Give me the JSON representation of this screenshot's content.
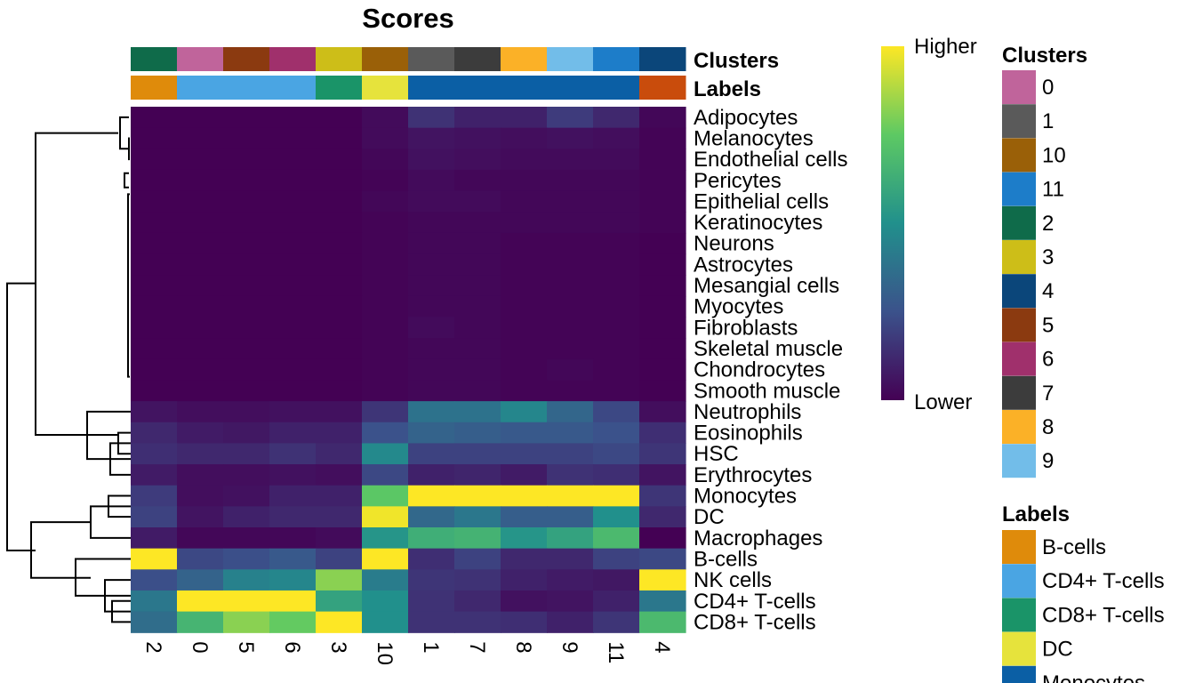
{
  "chart_data": {
    "type": "heatmap",
    "title": "Scores",
    "columns": [
      "2",
      "0",
      "5",
      "6",
      "3",
      "10",
      "1",
      "7",
      "8",
      "9",
      "11",
      "4"
    ],
    "rows": [
      "Adipocytes",
      "Melanocytes",
      "Endothelial cells",
      "Pericytes",
      "Epithelial cells",
      "Keratinocytes",
      "Neurons",
      "Astrocytes",
      "Mesangial cells",
      "Myocytes",
      "Fibroblasts",
      "Skeletal muscle",
      "Chondrocytes",
      "Smooth muscle",
      "Neutrophils",
      "Eosinophils",
      "HSC",
      "Erythrocytes",
      "Monocytes",
      "DC",
      "Macrophages",
      "B-cells",
      "NK cells",
      "CD4+ T-cells",
      "CD8+ T-cells"
    ],
    "values": [
      [
        0.0,
        0.0,
        0.0,
        0.0,
        0.0,
        0.03,
        0.15,
        0.1,
        0.1,
        0.18,
        0.12,
        0.02
      ],
      [
        0.0,
        0.0,
        0.0,
        0.0,
        0.0,
        0.03,
        0.06,
        0.05,
        0.04,
        0.05,
        0.04,
        0.01
      ],
      [
        0.0,
        0.0,
        0.0,
        0.0,
        0.0,
        0.02,
        0.05,
        0.04,
        0.03,
        0.03,
        0.03,
        0.01
      ],
      [
        0.0,
        0.0,
        0.0,
        0.0,
        0.0,
        0.01,
        0.03,
        0.02,
        0.02,
        0.02,
        0.02,
        0.01
      ],
      [
        0.0,
        0.0,
        0.0,
        0.0,
        0.0,
        0.02,
        0.03,
        0.03,
        0.02,
        0.02,
        0.02,
        0.01
      ],
      [
        0.0,
        0.0,
        0.0,
        0.0,
        0.0,
        0.01,
        0.02,
        0.02,
        0.02,
        0.02,
        0.02,
        0.01
      ],
      [
        0.0,
        0.0,
        0.0,
        0.0,
        0.0,
        0.01,
        0.02,
        0.02,
        0.01,
        0.01,
        0.01,
        0.0
      ],
      [
        0.0,
        0.0,
        0.0,
        0.0,
        0.0,
        0.01,
        0.02,
        0.02,
        0.01,
        0.01,
        0.01,
        0.0
      ],
      [
        0.0,
        0.0,
        0.0,
        0.0,
        0.0,
        0.01,
        0.02,
        0.02,
        0.01,
        0.01,
        0.01,
        0.0
      ],
      [
        0.0,
        0.0,
        0.0,
        0.0,
        0.0,
        0.01,
        0.02,
        0.02,
        0.01,
        0.01,
        0.01,
        0.0
      ],
      [
        0.0,
        0.0,
        0.0,
        0.0,
        0.0,
        0.01,
        0.03,
        0.02,
        0.01,
        0.01,
        0.01,
        0.0
      ],
      [
        0.0,
        0.0,
        0.0,
        0.0,
        0.0,
        0.01,
        0.02,
        0.02,
        0.01,
        0.01,
        0.01,
        0.0
      ],
      [
        0.0,
        0.0,
        0.0,
        0.0,
        0.0,
        0.01,
        0.02,
        0.02,
        0.01,
        0.02,
        0.01,
        0.0
      ],
      [
        0.0,
        0.0,
        0.0,
        0.0,
        0.0,
        0.01,
        0.02,
        0.02,
        0.01,
        0.01,
        0.01,
        0.0
      ],
      [
        0.06,
        0.04,
        0.04,
        0.05,
        0.05,
        0.16,
        0.38,
        0.38,
        0.46,
        0.33,
        0.22,
        0.04
      ],
      [
        0.12,
        0.08,
        0.07,
        0.1,
        0.1,
        0.25,
        0.32,
        0.3,
        0.28,
        0.28,
        0.25,
        0.14
      ],
      [
        0.14,
        0.12,
        0.12,
        0.15,
        0.12,
        0.47,
        0.2,
        0.2,
        0.2,
        0.2,
        0.22,
        0.16
      ],
      [
        0.08,
        0.04,
        0.04,
        0.05,
        0.04,
        0.22,
        0.1,
        0.11,
        0.08,
        0.15,
        0.14,
        0.06
      ],
      [
        0.18,
        0.04,
        0.05,
        0.1,
        0.1,
        0.74,
        1.0,
        1.0,
        1.0,
        1.0,
        1.0,
        0.16
      ],
      [
        0.2,
        0.06,
        0.1,
        0.12,
        0.12,
        0.98,
        0.34,
        0.4,
        0.3,
        0.3,
        0.5,
        0.12
      ],
      [
        0.08,
        0.02,
        0.02,
        0.02,
        0.03,
        0.52,
        0.63,
        0.65,
        0.52,
        0.58,
        0.68,
        0.0
      ],
      [
        1.0,
        0.22,
        0.24,
        0.28,
        0.2,
        1.0,
        0.14,
        0.2,
        0.12,
        0.12,
        0.2,
        0.22
      ],
      [
        0.24,
        0.32,
        0.44,
        0.46,
        0.82,
        0.42,
        0.16,
        0.15,
        0.1,
        0.08,
        0.07,
        1.0
      ],
      [
        0.4,
        1.0,
        1.0,
        1.0,
        0.58,
        0.5,
        0.15,
        0.12,
        0.05,
        0.06,
        0.1,
        0.4
      ],
      [
        0.36,
        0.66,
        0.82,
        0.76,
        1.0,
        0.5,
        0.15,
        0.15,
        0.14,
        0.1,
        0.16,
        0.68
      ]
    ],
    "color_scale": {
      "low_label": "Lower",
      "high_label": "Higher",
      "colors": [
        "#440154",
        "#3b528b",
        "#21908c",
        "#5dc963",
        "#fde725"
      ]
    },
    "annotations": {
      "clusters": {
        "label": "Clusters",
        "colors": [
          "#0f6b4a",
          "#c0649b",
          "#8b3a10",
          "#a0306c",
          "#cdbe18",
          "#9a6008",
          "#5a5a5a",
          "#3c3c3c",
          "#fbb127",
          "#72bde9",
          "#1d7dc9",
          "#0b467a"
        ]
      },
      "labels": {
        "label": "Labels",
        "colors": [
          "#df8b0b",
          "#4aa5e3",
          "#4aa5e3",
          "#4aa5e3",
          "#1a9468",
          "#e6e33c",
          "#0b5fa5",
          "#0b5fa5",
          "#0b5fa5",
          "#0b5fa5",
          "#0b5fa5",
          "#c94c0c"
        ]
      }
    },
    "legend_clusters": {
      "title": "Clusters",
      "items": [
        {
          "label": "0",
          "color": "#c0649b"
        },
        {
          "label": "1",
          "color": "#5a5a5a"
        },
        {
          "label": "10",
          "color": "#9a6008"
        },
        {
          "label": "11",
          "color": "#1d7dc9"
        },
        {
          "label": "2",
          "color": "#0f6b4a"
        },
        {
          "label": "3",
          "color": "#cdbe18"
        },
        {
          "label": "4",
          "color": "#0b467a"
        },
        {
          "label": "5",
          "color": "#8b3a10"
        },
        {
          "label": "6",
          "color": "#a0306c"
        },
        {
          "label": "7",
          "color": "#3c3c3c"
        },
        {
          "label": "8",
          "color": "#fbb127"
        },
        {
          "label": "9",
          "color": "#72bde9"
        }
      ]
    },
    "legend_labels": {
      "title": "Labels",
      "items": [
        {
          "label": "B-cells",
          "color": "#df8b0b"
        },
        {
          "label": "CD4+ T-cells",
          "color": "#4aa5e3"
        },
        {
          "label": "CD8+ T-cells",
          "color": "#1a9468"
        },
        {
          "label": "DC",
          "color": "#e6e33c"
        },
        {
          "label": "Monocytes",
          "color": "#0b5fa5"
        }
      ]
    }
  }
}
